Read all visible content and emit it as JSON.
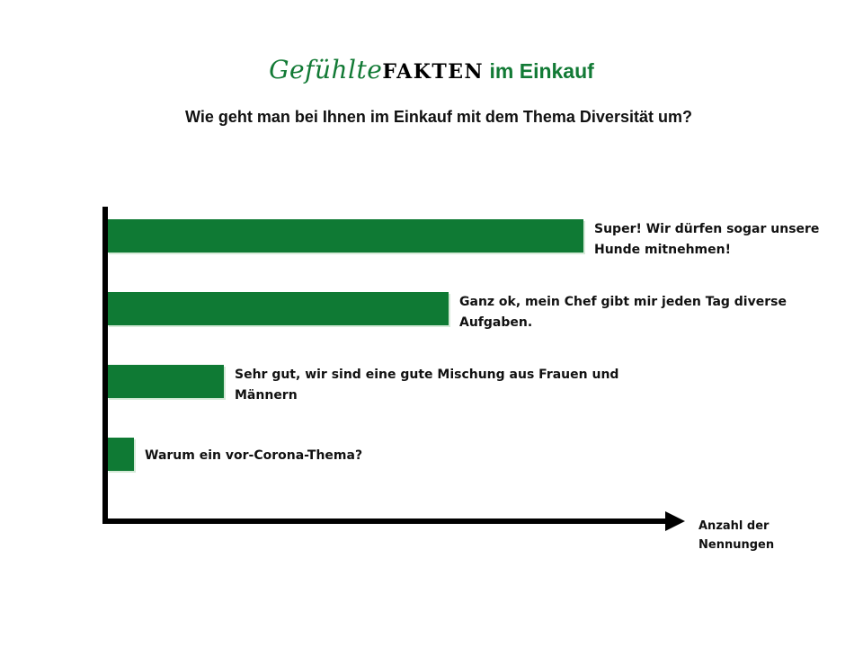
{
  "title": {
    "part1": "Gefühlte",
    "part2": "FAKTEN",
    "part3": " im Einkauf"
  },
  "subtitle": "Wie geht man bei Ihnen im Einkauf mit dem Thema Diversität um?",
  "colors": {
    "bar": "#0f7a34",
    "bar_edge": "#d6ead8",
    "axis": "#000000",
    "title_green": "#127a35"
  },
  "chart_data": {
    "type": "bar",
    "orientation": "horizontal",
    "categories": [
      [
        "Super! Wir dürfen sogar unsere",
        "Hunde mitnehmen!"
      ],
      [
        "Ganz ok, mein Chef gibt mir jeden Tag diverse",
        "Aufgaben."
      ],
      [
        "Sehr gut, wir sind eine gute Mischung aus Frauen und",
        "Männern"
      ],
      [
        "Warum ein vor-Corona-Thema?"
      ]
    ],
    "values": [
      53,
      38,
      13,
      3
    ],
    "xlabel": [
      "Anzahl der",
      "Nennungen"
    ],
    "ylabel": "",
    "xlim": [
      0,
      63
    ],
    "value_ticks_shown": false,
    "grid": false,
    "legend": false
  }
}
